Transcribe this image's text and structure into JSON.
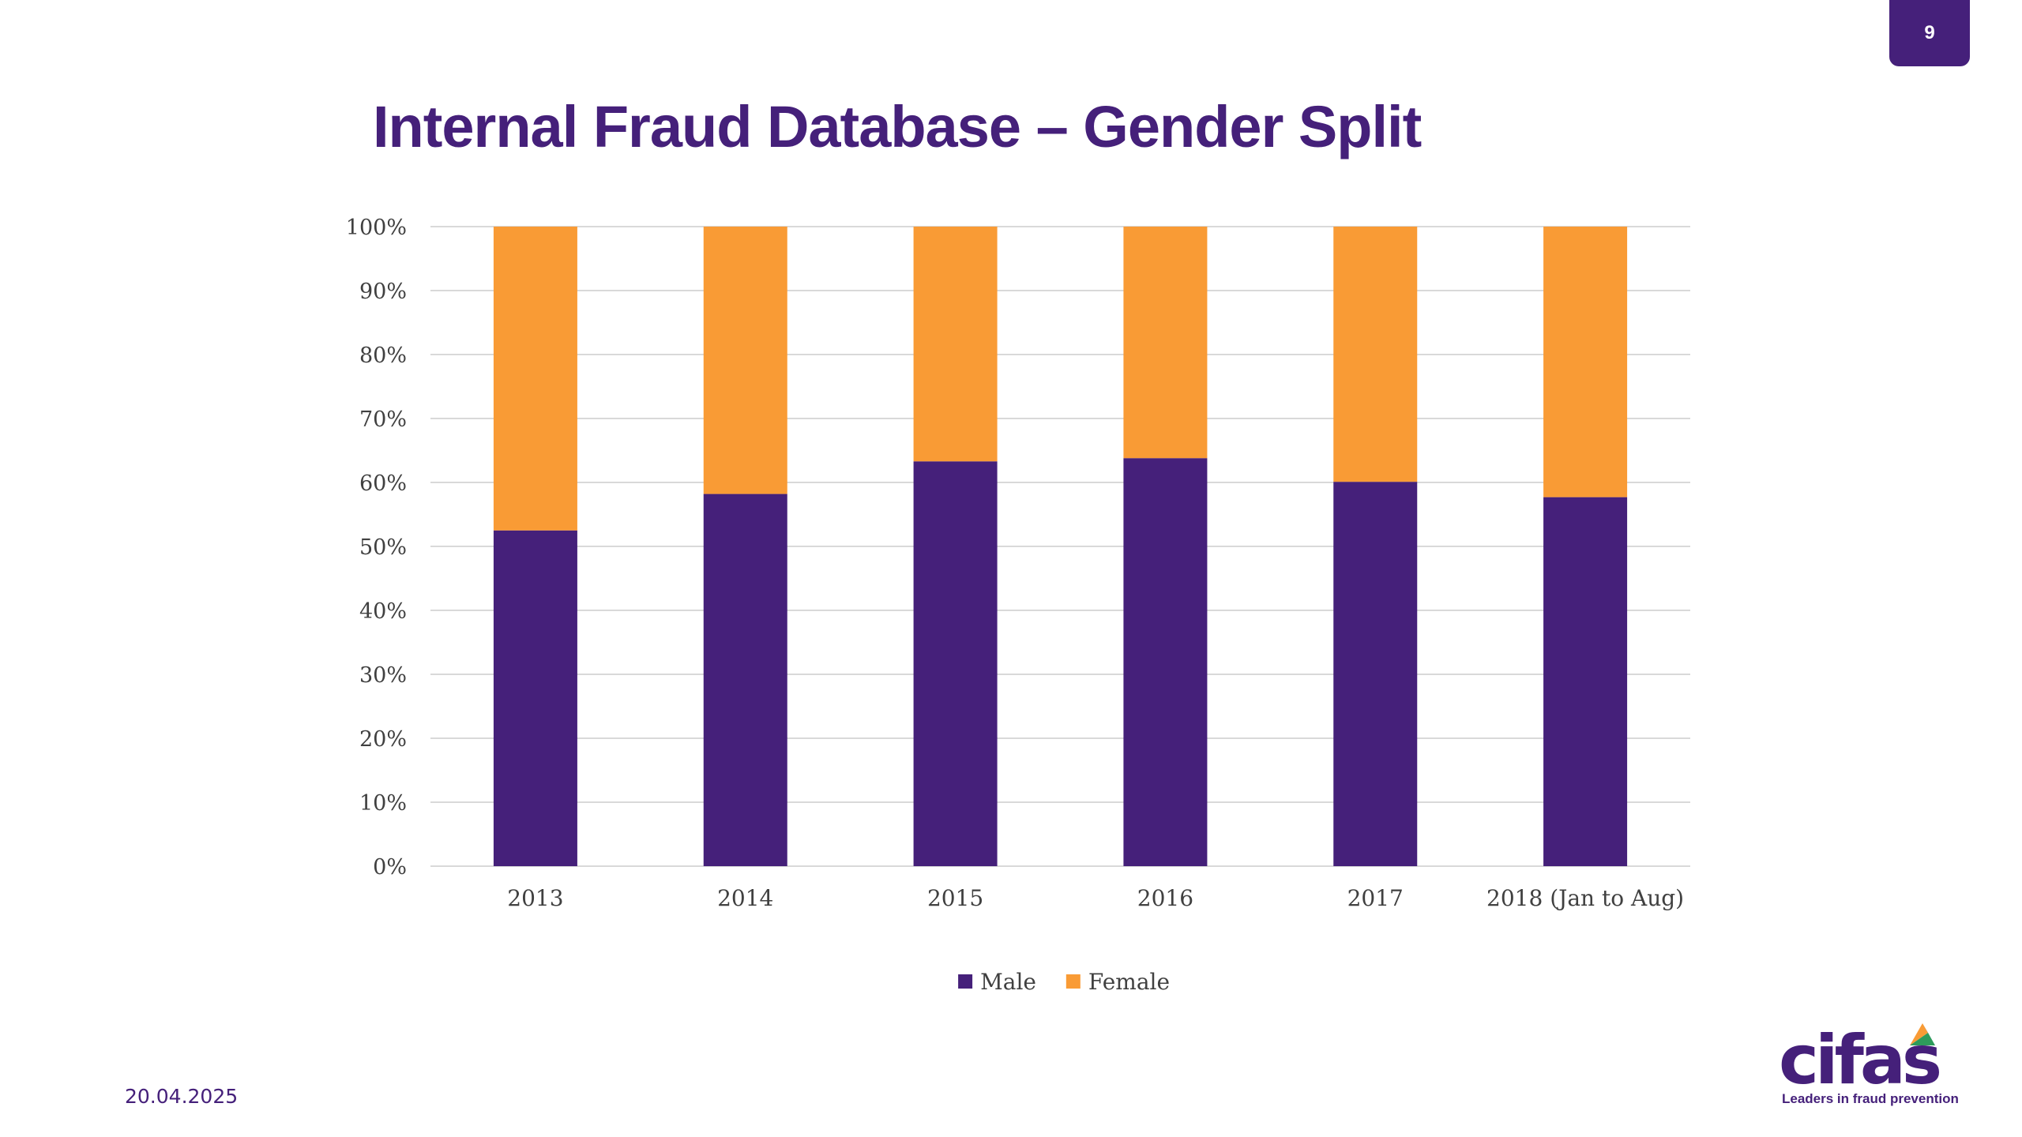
{
  "slide": {
    "page_number": "9",
    "title": "Internal Fraud Database – Gender Split",
    "date": "20.04.2025"
  },
  "logo": {
    "wordmark": "cifas",
    "tagline": "Leaders in fraud prevention",
    "colors": {
      "primary": "#45207a",
      "accent_orange": "#f99b35",
      "accent_green": "#2e9b5b",
      "accent_blue": "#2d6fb5"
    }
  },
  "chart_data": {
    "type": "bar",
    "stacked": true,
    "percent_stacked": true,
    "categories": [
      "2013",
      "2014",
      "2015",
      "2016",
      "2017",
      "2018 (Jan to Aug)"
    ],
    "series": [
      {
        "name": "Male",
        "color": "#45207a",
        "values": [
          52.5,
          58.2,
          63.3,
          63.8,
          60.1,
          57.7
        ]
      },
      {
        "name": "Female",
        "color": "#f99b35",
        "values": [
          47.5,
          41.8,
          36.7,
          36.2,
          39.9,
          42.3
        ]
      }
    ],
    "yticks": [
      "0%",
      "10%",
      "20%",
      "30%",
      "40%",
      "50%",
      "60%",
      "70%",
      "80%",
      "90%",
      "100%"
    ],
    "ylim": [
      0,
      100
    ],
    "grid": true,
    "legend": "bottom"
  }
}
